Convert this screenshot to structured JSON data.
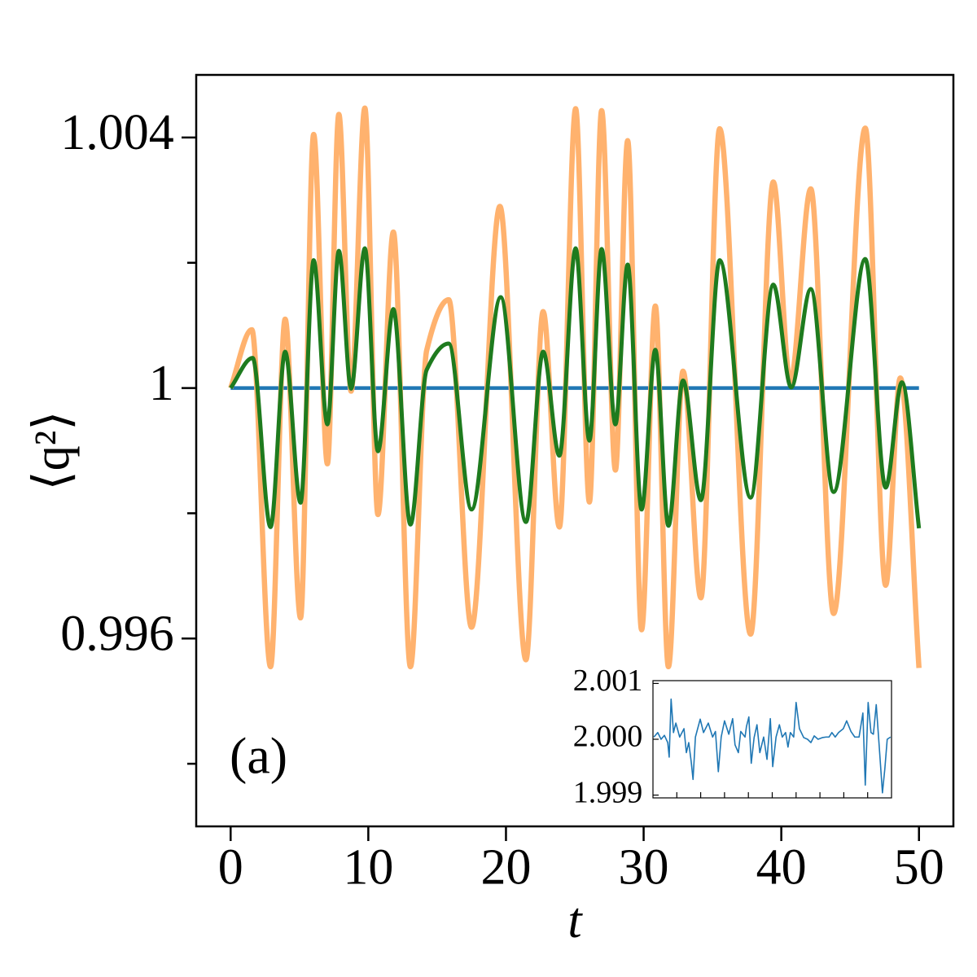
{
  "chart_data": [
    {
      "type": "line",
      "xlabel": "t",
      "ylabel": "⟨q²⟩",
      "annotation": "(a)",
      "xlim": [
        -2.5,
        52.5
      ],
      "xticks": [
        0,
        10,
        20,
        30,
        40,
        50
      ],
      "ylim": [
        0.993,
        1.005
      ],
      "yticks": [
        0.996,
        1,
        1.004
      ],
      "yticks_minor": [
        0.994,
        0.998,
        1.002
      ],
      "tick_direction": "out",
      "series": [
        {
          "color": "#1f77b4",
          "x": [
            0,
            50
          ],
          "values": [
            1,
            1
          ]
        },
        {
          "color": "#ffb26e",
          "x": [
            0,
            1.54,
            2.9,
            3.96,
            5.08,
            6.03,
            7.03,
            7.86,
            8.75,
            9.75,
            10.7,
            11.82,
            13.06,
            14.24,
            15.84,
            17.5,
            19.56,
            21.45,
            22.7,
            23.88,
            25.06,
            26.06,
            26.95,
            27.95,
            28.84,
            29.85,
            30.85,
            31.8,
            32.86,
            34.16,
            35.52,
            37.77,
            39.42,
            40.66,
            42.14,
            43.8,
            46.1,
            47.58,
            48.64,
            50
          ],
          "values": [
            1,
            1.00093,
            0.99555,
            1.0011,
            0.99633,
            1.00405,
            0.99879,
            1.00437,
            0.99995,
            1.00447,
            0.99798,
            1.00249,
            0.99555,
            1.0006,
            1.00141,
            0.99618,
            1.0029,
            0.99566,
            1.00122,
            0.99778,
            1.00446,
            0.99818,
            1.00443,
            0.99869,
            1.00395,
            0.99614,
            1.00131,
            0.99555,
            1.00027,
            0.99665,
            1.00414,
            0.99607,
            1.00329,
            1.0001,
            1.00318,
            0.9964,
            1.00415,
            0.99685,
            1.00016,
            0.99553
          ]
        },
        {
          "color": "#1e7b1e",
          "x": [
            0,
            1.6,
            2.9,
            3.96,
            5.08,
            6.03,
            7.03,
            7.86,
            8.75,
            9.75,
            10.7,
            11.82,
            13.06,
            14.24,
            15.84,
            17.5,
            19.62,
            21.45,
            22.7,
            23.88,
            25.06,
            26.06,
            26.95,
            27.95,
            28.84,
            29.85,
            30.85,
            31.8,
            32.86,
            34.16,
            35.52,
            37.77,
            39.42,
            40.72,
            42.14,
            43.8,
            46.1,
            47.58,
            48.76,
            50
          ],
          "values": [
            1,
            1.00048,
            0.99778,
            1.00058,
            0.99817,
            1.00204,
            0.99942,
            1.00219,
            0.99999,
            1.00223,
            0.99899,
            1.00126,
            0.99782,
            1.00029,
            1.00071,
            0.99806,
            1.00145,
            0.99786,
            1.00058,
            0.99892,
            1.00223,
            0.99916,
            1.00222,
            0.99942,
            1.00197,
            0.99806,
            1.00061,
            0.9978,
            1.00012,
            0.99821,
            1.00204,
            0.99825,
            1.00165,
            1.00001,
            1.00158,
            0.99834,
            1.00206,
            0.99841,
            1.00009,
            0.99776
          ]
        }
      ]
    },
    {
      "type": "line",
      "xlim": [
        0,
        50
      ],
      "xticks": [
        5,
        10,
        15,
        20,
        25,
        30,
        35,
        40,
        45
      ],
      "xtick_labels": false,
      "ylim": [
        1.99895,
        2.00105
      ],
      "yticks": [
        1.999,
        {
          "value": 2,
          "label": "2.000"
        },
        2.001
      ],
      "tick_direction": "in",
      "series": [
        {
          "color": "#1f77b4",
          "x": [
            0.2,
            1.0,
            1.7,
            2.4,
            3.1,
            3.4,
            3.8,
            4.3,
            4.8,
            5.6,
            6.5,
            7.0,
            7.5,
            8.0,
            8.4,
            8.9,
            9.9,
            10.6,
            11.6,
            12.5,
            13.1,
            13.7,
            14.3,
            15.0,
            15.9,
            16.7,
            17.2,
            17.9,
            18.4,
            19.3,
            19.6,
            20.1,
            20.6,
            21.2,
            21.8,
            22.4,
            23.2,
            23.9,
            24.6,
            25.1,
            25.8,
            26.5,
            27.1,
            27.8,
            28.3,
            28.8,
            29.5,
            30.0,
            30.7,
            31.6,
            32.4,
            33.1,
            33.8,
            34.6,
            35.5,
            36.3,
            36.9,
            37.5,
            38.2,
            38.9,
            39.9,
            40.6,
            41.5,
            42.3,
            43.2,
            44.0,
            44.5,
            45.1,
            45.7,
            46.2,
            46.8,
            47.4,
            48.1,
            48.6,
            49.1,
            49.8
          ],
          "values": [
            2.00004,
            2.00012,
            2.0,
            2.00007,
            1.99994,
            1.99968,
            2.00072,
            2.00012,
            2.00029,
            2.00004,
            2.00019,
            1.99976,
            1.99994,
            1.99961,
            1.99928,
            2.00004,
            2.00036,
            2.00012,
            2.00029,
            2.00004,
            2.00014,
            1.99942,
            2.00004,
            2.00033,
            2.00009,
            2.00037,
            1.9999,
            1.99976,
            2.00014,
            2.00004,
            2.00023,
            2.0004,
            1.99957,
            2.00003,
            2.00026,
            1.99976,
            2.00004,
            1.99964,
            2.00037,
            1.99951,
            2.00004,
            2.00026,
            2.00004,
            2.00012,
            1.99986,
            2.00012,
            2.00004,
            2.00066,
            2.00019,
            2.00003,
            2.0,
            1.99994,
            2.00006,
            2.0,
            2.00003,
            2.00004,
            2.00004,
            2.00012,
            2.00004,
            2.00012,
            2.00019,
            2.00033,
            2.00014,
            2.00004,
            2.00004,
            2.00047,
            1.99918,
            2.00066,
            2.00012,
            2.00009,
            2.00062,
            1.9999,
            1.99904,
            1.99947,
            2.0,
            2.00004
          ]
        }
      ]
    }
  ]
}
